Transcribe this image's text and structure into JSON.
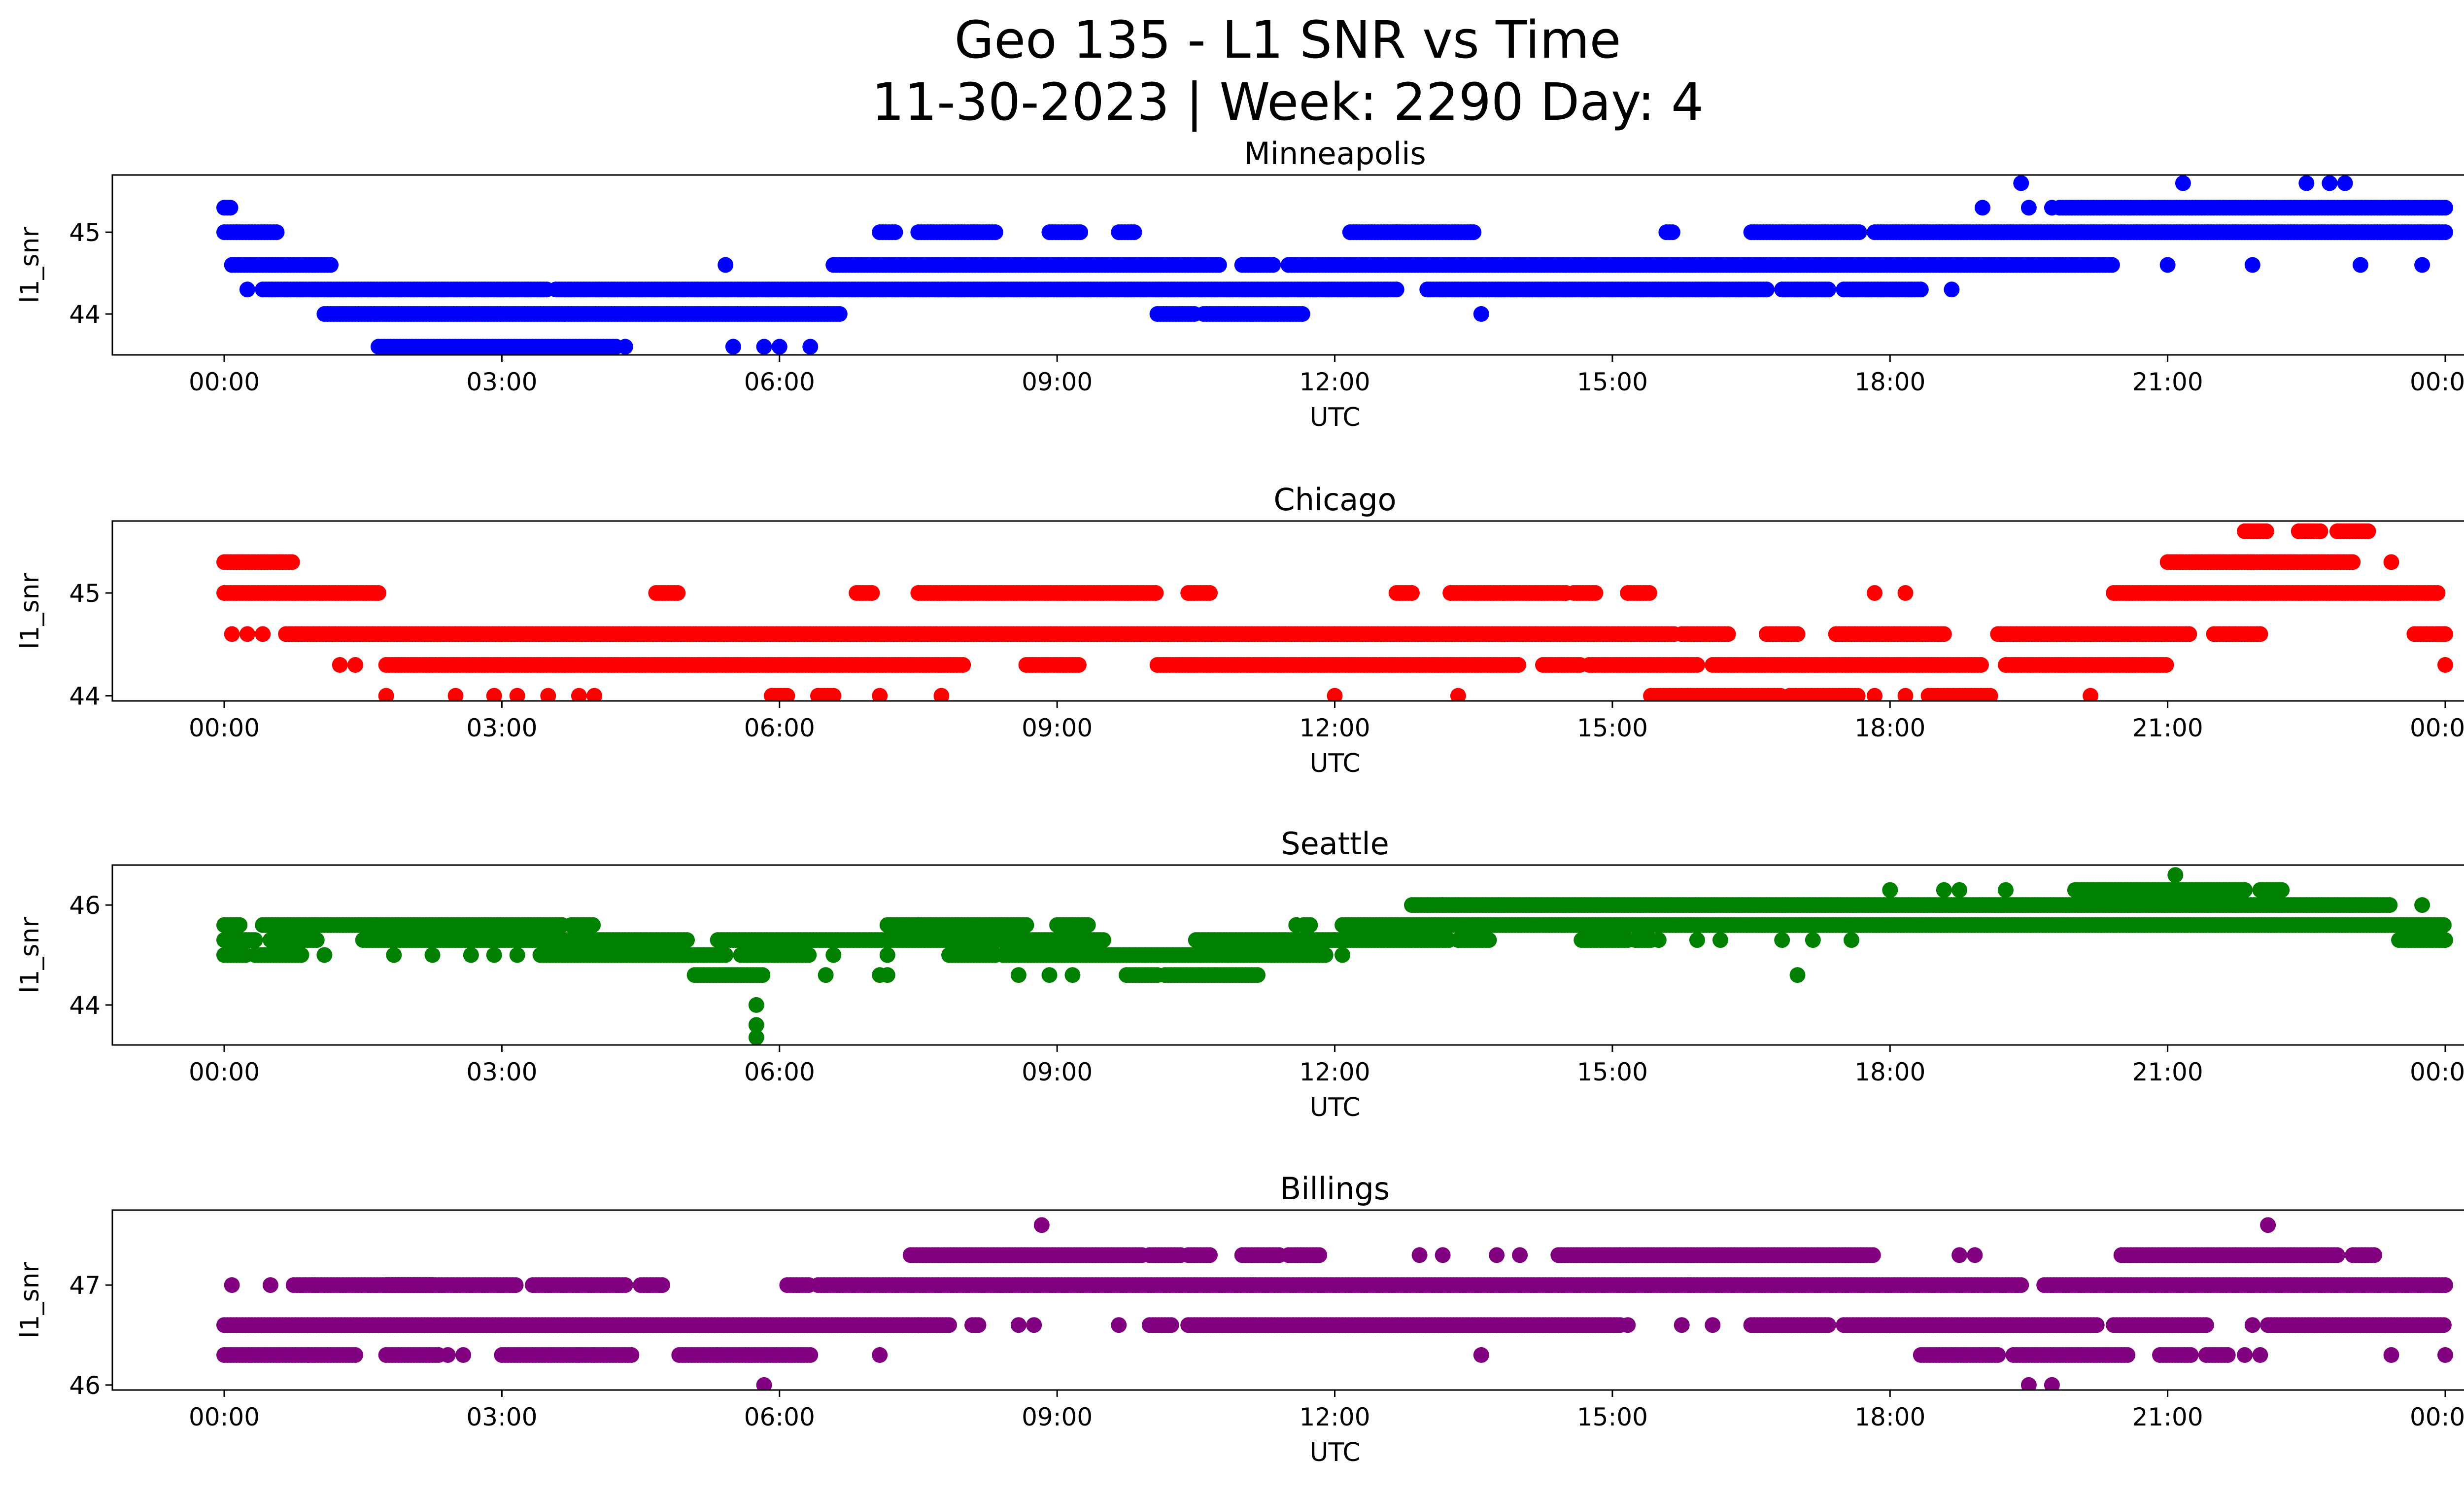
{
  "figure": {
    "title_line1": "Geo 135 - L1 SNR vs Time",
    "title_line2": "11-30-2023 | Week: 2290 Day: 4"
  },
  "chart_data": [
    {
      "type": "scatter",
      "title": "Minneapolis",
      "xlabel": "UTC",
      "ylabel": "l1_snr",
      "color": "#0000ff",
      "xlim": [
        "00:00",
        "24:00"
      ],
      "xticks": [
        "00:00",
        "03:00",
        "06:00",
        "09:00",
        "12:00",
        "15:00",
        "18:00",
        "21:00",
        "00:00"
      ],
      "ylim": [
        43.5,
        45.7
      ],
      "yticks": [
        44,
        45
      ],
      "grid": false,
      "bands": [
        {
          "y": 45.3,
          "ranges": [
            [
              "00:00",
              "00:05"
            ],
            [
              "19:50",
              "24:00"
            ]
          ]
        },
        {
          "y": 45.0,
          "ranges": [
            [
              "00:00",
              "00:35"
            ],
            [
              "07:05",
              "07:15"
            ],
            [
              "07:30",
              "08:20"
            ],
            [
              "08:55",
              "09:15"
            ],
            [
              "09:40",
              "09:50"
            ],
            [
              "12:10",
              "12:40"
            ],
            [
              "12:40",
              "13:30"
            ],
            [
              "15:35",
              "15:40"
            ],
            [
              "16:30",
              "17:40"
            ],
            [
              "17:50",
              "24:00"
            ]
          ]
        },
        {
          "y": 44.6,
          "ranges": [
            [
              "00:05",
              "01:10"
            ],
            [
              "06:35",
              "10:45"
            ],
            [
              "11:00",
              "11:20"
            ],
            [
              "11:30",
              "20:25"
            ]
          ]
        },
        {
          "y": 44.3,
          "ranges": [
            [
              "00:25",
              "03:30"
            ],
            [
              "03:35",
              "07:50"
            ],
            [
              "07:50",
              "12:40"
            ],
            [
              "13:00",
              "16:40"
            ],
            [
              "16:50",
              "17:20"
            ],
            [
              "17:30",
              "18:20"
            ]
          ]
        },
        {
          "y": 44.0,
          "ranges": [
            [
              "01:05",
              "06:40"
            ],
            [
              "10:05",
              "10:30"
            ],
            [
              "10:35",
              "11:40"
            ]
          ]
        },
        {
          "y": 43.6,
          "ranges": [
            [
              "01:40",
              "04:15"
            ]
          ]
        }
      ],
      "points": [
        [
          "00:15",
          44.3
        ],
        [
          "05:25",
          44.6
        ],
        [
          "13:35",
          44.0
        ],
        [
          "04:20",
          43.6
        ],
        [
          "05:30",
          43.6
        ],
        [
          "05:50",
          43.6
        ],
        [
          "06:00",
          43.6
        ],
        [
          "06:20",
          43.6
        ],
        [
          "18:40",
          44.3
        ],
        [
          "19:25",
          45.6
        ],
        [
          "21:10",
          45.6
        ],
        [
          "22:30",
          45.6
        ],
        [
          "22:45",
          45.6
        ],
        [
          "22:55",
          45.6
        ],
        [
          "21:00",
          44.6
        ],
        [
          "21:55",
          44.6
        ],
        [
          "23:05",
          44.6
        ],
        [
          "23:45",
          44.6
        ],
        [
          "19:00",
          45.3
        ],
        [
          "19:30",
          45.3
        ],
        [
          "19:45",
          45.3
        ]
      ]
    },
    {
      "type": "scatter",
      "title": "Chicago",
      "xlabel": "UTC",
      "ylabel": "l1_snr",
      "color": "#ff0000",
      "xlim": [
        "00:00",
        "24:00"
      ],
      "xticks": [
        "00:00",
        "03:00",
        "06:00",
        "09:00",
        "12:00",
        "15:00",
        "18:00",
        "21:00",
        "00:00"
      ],
      "ylim": [
        43.95,
        45.7
      ],
      "yticks": [
        44,
        45
      ],
      "grid": false,
      "bands": [
        {
          "y": 45.6,
          "ranges": [
            [
              "21:50",
              "22:05"
            ],
            [
              "22:25",
              "22:40"
            ],
            [
              "22:50",
              "23:10"
            ]
          ]
        },
        {
          "y": 45.3,
          "ranges": [
            [
              "00:00",
              "00:45"
            ],
            [
              "21:00",
              "23:00"
            ]
          ]
        },
        {
          "y": 45.0,
          "ranges": [
            [
              "00:00",
              "01:40"
            ],
            [
              "04:40",
              "04:55"
            ],
            [
              "06:50",
              "07:00"
            ],
            [
              "07:30",
              "10:05"
            ],
            [
              "10:25",
              "10:40"
            ],
            [
              "12:40",
              "12:50"
            ],
            [
              "13:15",
              "13:50"
            ],
            [
              "13:50",
              "14:30"
            ],
            [
              "14:35",
              "14:50"
            ],
            [
              "15:10",
              "15:25"
            ],
            [
              "20:25",
              "23:55"
            ]
          ]
        },
        {
          "y": 44.6,
          "ranges": [
            [
              "00:40",
              "03:00"
            ],
            [
              "03:00",
              "15:40"
            ],
            [
              "15:45",
              "16:15"
            ],
            [
              "16:40",
              "17:00"
            ],
            [
              "17:25",
              "18:35"
            ],
            [
              "19:10",
              "21:15"
            ],
            [
              "21:30",
              "22:00"
            ],
            [
              "23:55",
              "24:00"
            ],
            [
              "23:40",
              "24:00"
            ]
          ]
        },
        {
          "y": 44.3,
          "ranges": [
            [
              "01:45",
              "08:00"
            ],
            [
              "08:40",
              "09:15"
            ],
            [
              "10:05",
              "14:00"
            ],
            [
              "14:15",
              "14:40"
            ],
            [
              "14:45",
              "15:55"
            ],
            [
              "16:05",
              "19:00"
            ],
            [
              "19:15",
              "21:00"
            ]
          ]
        },
        {
          "y": 44.0,
          "ranges": [
            [
              "05:55",
              "06:05"
            ],
            [
              "06:25",
              "06:35"
            ],
            [
              "15:25",
              "16:50"
            ],
            [
              "16:55",
              "17:40"
            ],
            [
              "18:25",
              "19:05"
            ]
          ]
        }
      ],
      "points": [
        [
          "00:05",
          44.6
        ],
        [
          "00:15",
          44.6
        ],
        [
          "00:25",
          44.6
        ],
        [
          "01:15",
          44.3
        ],
        [
          "01:25",
          44.3
        ],
        [
          "01:45",
          44.0
        ],
        [
          "02:30",
          44.0
        ],
        [
          "02:55",
          44.0
        ],
        [
          "03:10",
          44.0
        ],
        [
          "03:30",
          44.0
        ],
        [
          "03:50",
          44.0
        ],
        [
          "04:00",
          44.0
        ],
        [
          "05:55",
          44.0
        ],
        [
          "07:05",
          44.0
        ],
        [
          "07:45",
          44.0
        ],
        [
          "12:00",
          44.0
        ],
        [
          "13:20",
          44.0
        ],
        [
          "17:50",
          44.0
        ],
        [
          "18:10",
          44.0
        ],
        [
          "20:10",
          44.0
        ],
        [
          "17:50",
          45.0
        ],
        [
          "18:10",
          45.0
        ],
        [
          "22:00",
          44.6
        ],
        [
          "23:25",
          45.3
        ],
        [
          "24:00",
          44.3
        ]
      ]
    },
    {
      "type": "scatter",
      "title": "Seattle",
      "xlabel": "UTC",
      "ylabel": "l1_snr",
      "color": "#008000",
      "xlim": [
        "00:00",
        "24:00"
      ],
      "xticks": [
        "00:00",
        "03:00",
        "06:00",
        "09:00",
        "12:00",
        "15:00",
        "18:00",
        "21:00",
        "00:00"
      ],
      "ylim": [
        43.2,
        46.8
      ],
      "yticks": [
        44,
        46
      ],
      "grid": false,
      "bands": [
        {
          "y": 46.3,
          "ranges": [
            [
              "20:00",
              "21:50"
            ],
            [
              "22:00",
              "22:15"
            ]
          ]
        },
        {
          "y": 46.0,
          "ranges": [
            [
              "12:50",
              "13:10"
            ],
            [
              "13:10",
              "23:25"
            ]
          ]
        },
        {
          "y": 45.6,
          "ranges": [
            [
              "00:00",
              "00:10"
            ],
            [
              "00:25",
              "03:40"
            ],
            [
              "03:45",
              "04:00"
            ],
            [
              "07:10",
              "07:30"
            ],
            [
              "07:30",
              "08:40"
            ],
            [
              "09:00",
              "09:20"
            ],
            [
              "11:40",
              "11:45"
            ],
            [
              "12:05",
              "24:00"
            ]
          ]
        },
        {
          "y": 45.3,
          "ranges": [
            [
              "00:00",
              "00:20"
            ],
            [
              "00:30",
              "01:00"
            ],
            [
              "01:30",
              "05:00"
            ],
            [
              "05:20",
              "09:30"
            ],
            [
              "10:30",
              "12:00"
            ],
            [
              "12:00",
              "13:15"
            ],
            [
              "13:20",
              "13:40"
            ],
            [
              "14:40",
              "15:10"
            ],
            [
              "15:15",
              "15:25"
            ],
            [
              "23:30",
              "24:00"
            ]
          ]
        },
        {
          "y": 45.0,
          "ranges": [
            [
              "00:00",
              "00:15"
            ],
            [
              "00:20",
              "00:50"
            ],
            [
              "03:25",
              "05:25"
            ],
            [
              "05:35",
              "06:20"
            ],
            [
              "07:50",
              "08:20"
            ],
            [
              "08:25",
              "11:40"
            ],
            [
              "11:40",
              "11:55"
            ]
          ]
        },
        {
          "y": 44.6,
          "ranges": [
            [
              "05:05",
              "05:50"
            ],
            [
              "09:45",
              "10:05"
            ],
            [
              "10:10",
              "11:10"
            ]
          ]
        }
      ],
      "points": [
        [
          "05:45",
          44.0
        ],
        [
          "05:45",
          43.6
        ],
        [
          "05:45",
          43.35
        ],
        [
          "17:00",
          44.6
        ],
        [
          "06:30",
          44.6
        ],
        [
          "07:05",
          44.6
        ],
        [
          "07:10",
          44.6
        ],
        [
          "08:35",
          44.6
        ],
        [
          "08:55",
          44.6
        ],
        [
          "09:10",
          44.6
        ],
        [
          "01:05",
          45.0
        ],
        [
          "01:50",
          45.0
        ],
        [
          "02:15",
          45.0
        ],
        [
          "02:40",
          45.0
        ],
        [
          "02:55",
          45.0
        ],
        [
          "03:10",
          45.0
        ],
        [
          "06:35",
          45.0
        ],
        [
          "11:35",
          45.6
        ],
        [
          "12:05",
          45.0
        ],
        [
          "15:30",
          45.3
        ],
        [
          "15:55",
          45.3
        ],
        [
          "16:10",
          45.3
        ],
        [
          "16:50",
          45.3
        ],
        [
          "17:10",
          45.3
        ],
        [
          "17:35",
          45.3
        ],
        [
          "18:00",
          46.3
        ],
        [
          "18:35",
          46.3
        ],
        [
          "18:45",
          46.3
        ],
        [
          "19:15",
          46.3
        ],
        [
          "21:05",
          46.6
        ],
        [
          "23:45",
          46.0
        ],
        [
          "07:10",
          45.0
        ]
      ]
    },
    {
      "type": "scatter",
      "title": "Billings",
      "xlabel": "UTC",
      "ylabel": "l1_snr",
      "color": "#800080",
      "xlim": [
        "00:00",
        "24:00"
      ],
      "xticks": [
        "00:00",
        "03:00",
        "06:00",
        "09:00",
        "12:00",
        "15:00",
        "18:00",
        "21:00",
        "00:00"
      ],
      "ylim": [
        45.95,
        47.75
      ],
      "yticks": [
        46,
        47
      ],
      "grid": false,
      "bands": [
        {
          "y": 47.3,
          "ranges": [
            [
              "07:25",
              "09:55"
            ],
            [
              "10:00",
              "10:20"
            ],
            [
              "10:25",
              "10:40"
            ],
            [
              "11:00",
              "11:25"
            ],
            [
              "11:30",
              "11:50"
            ],
            [
              "14:25",
              "15:05"
            ],
            [
              "15:05",
              "17:50"
            ],
            [
              "20:30",
              "22:50"
            ],
            [
              "23:00",
              "23:15"
            ]
          ]
        },
        {
          "y": 47.0,
          "ranges": [
            [
              "00:45",
              "02:15"
            ],
            [
              "01:45",
              "03:10"
            ],
            [
              "03:20",
              "04:20"
            ],
            [
              "04:30",
              "04:45"
            ],
            [
              "06:05",
              "06:20"
            ],
            [
              "06:25",
              "19:25"
            ],
            [
              "19:40",
              "24:00"
            ]
          ]
        },
        {
          "y": 46.6,
          "ranges": [
            [
              "00:00",
              "07:30"
            ],
            [
              "07:30",
              "07:50"
            ],
            [
              "08:05",
              "08:10"
            ],
            [
              "10:00",
              "10:15"
            ],
            [
              "10:25",
              "15:05"
            ],
            [
              "16:30",
              "17:20"
            ],
            [
              "17:30",
              "18:00"
            ],
            [
              "18:00",
              "20:15"
            ],
            [
              "20:25",
              "21:25"
            ],
            [
              "22:05",
              "24:00"
            ]
          ]
        },
        {
          "y": 46.3,
          "ranges": [
            [
              "00:00",
              "00:55"
            ],
            [
              "00:55",
              "01:25"
            ],
            [
              "01:45",
              "02:20"
            ],
            [
              "03:00",
              "03:50"
            ],
            [
              "03:50",
              "04:25"
            ],
            [
              "04:55",
              "05:20"
            ],
            [
              "05:20",
              "06:20"
            ],
            [
              "18:20",
              "19:10"
            ],
            [
              "19:20",
              "20:35"
            ],
            [
              "20:55",
              "21:15"
            ],
            [
              "21:25",
              "21:40"
            ]
          ]
        }
      ],
      "points": [
        [
          "00:05",
          47.0
        ],
        [
          "00:30",
          47.0
        ],
        [
          "05:50",
          46.0
        ],
        [
          "08:50",
          47.6
        ],
        [
          "22:05",
          47.6
        ],
        [
          "19:30",
          46.0
        ],
        [
          "19:45",
          46.0
        ],
        [
          "08:35",
          46.6
        ],
        [
          "08:45",
          46.6
        ],
        [
          "09:40",
          46.6
        ],
        [
          "13:35",
          46.3
        ],
        [
          "07:05",
          46.3
        ],
        [
          "12:55",
          47.3
        ],
        [
          "13:10",
          47.3
        ],
        [
          "13:45",
          47.3
        ],
        [
          "14:00",
          47.3
        ],
        [
          "18:45",
          47.3
        ],
        [
          "18:55",
          47.3
        ],
        [
          "15:10",
          46.6
        ],
        [
          "15:45",
          46.6
        ],
        [
          "16:05",
          46.6
        ],
        [
          "02:25",
          46.3
        ],
        [
          "02:35",
          46.3
        ],
        [
          "04:00",
          46.3
        ],
        [
          "21:50",
          46.3
        ],
        [
          "22:00",
          46.3
        ],
        [
          "23:25",
          46.3
        ],
        [
          "24:00",
          46.3
        ],
        [
          "21:55",
          46.6
        ]
      ]
    }
  ]
}
